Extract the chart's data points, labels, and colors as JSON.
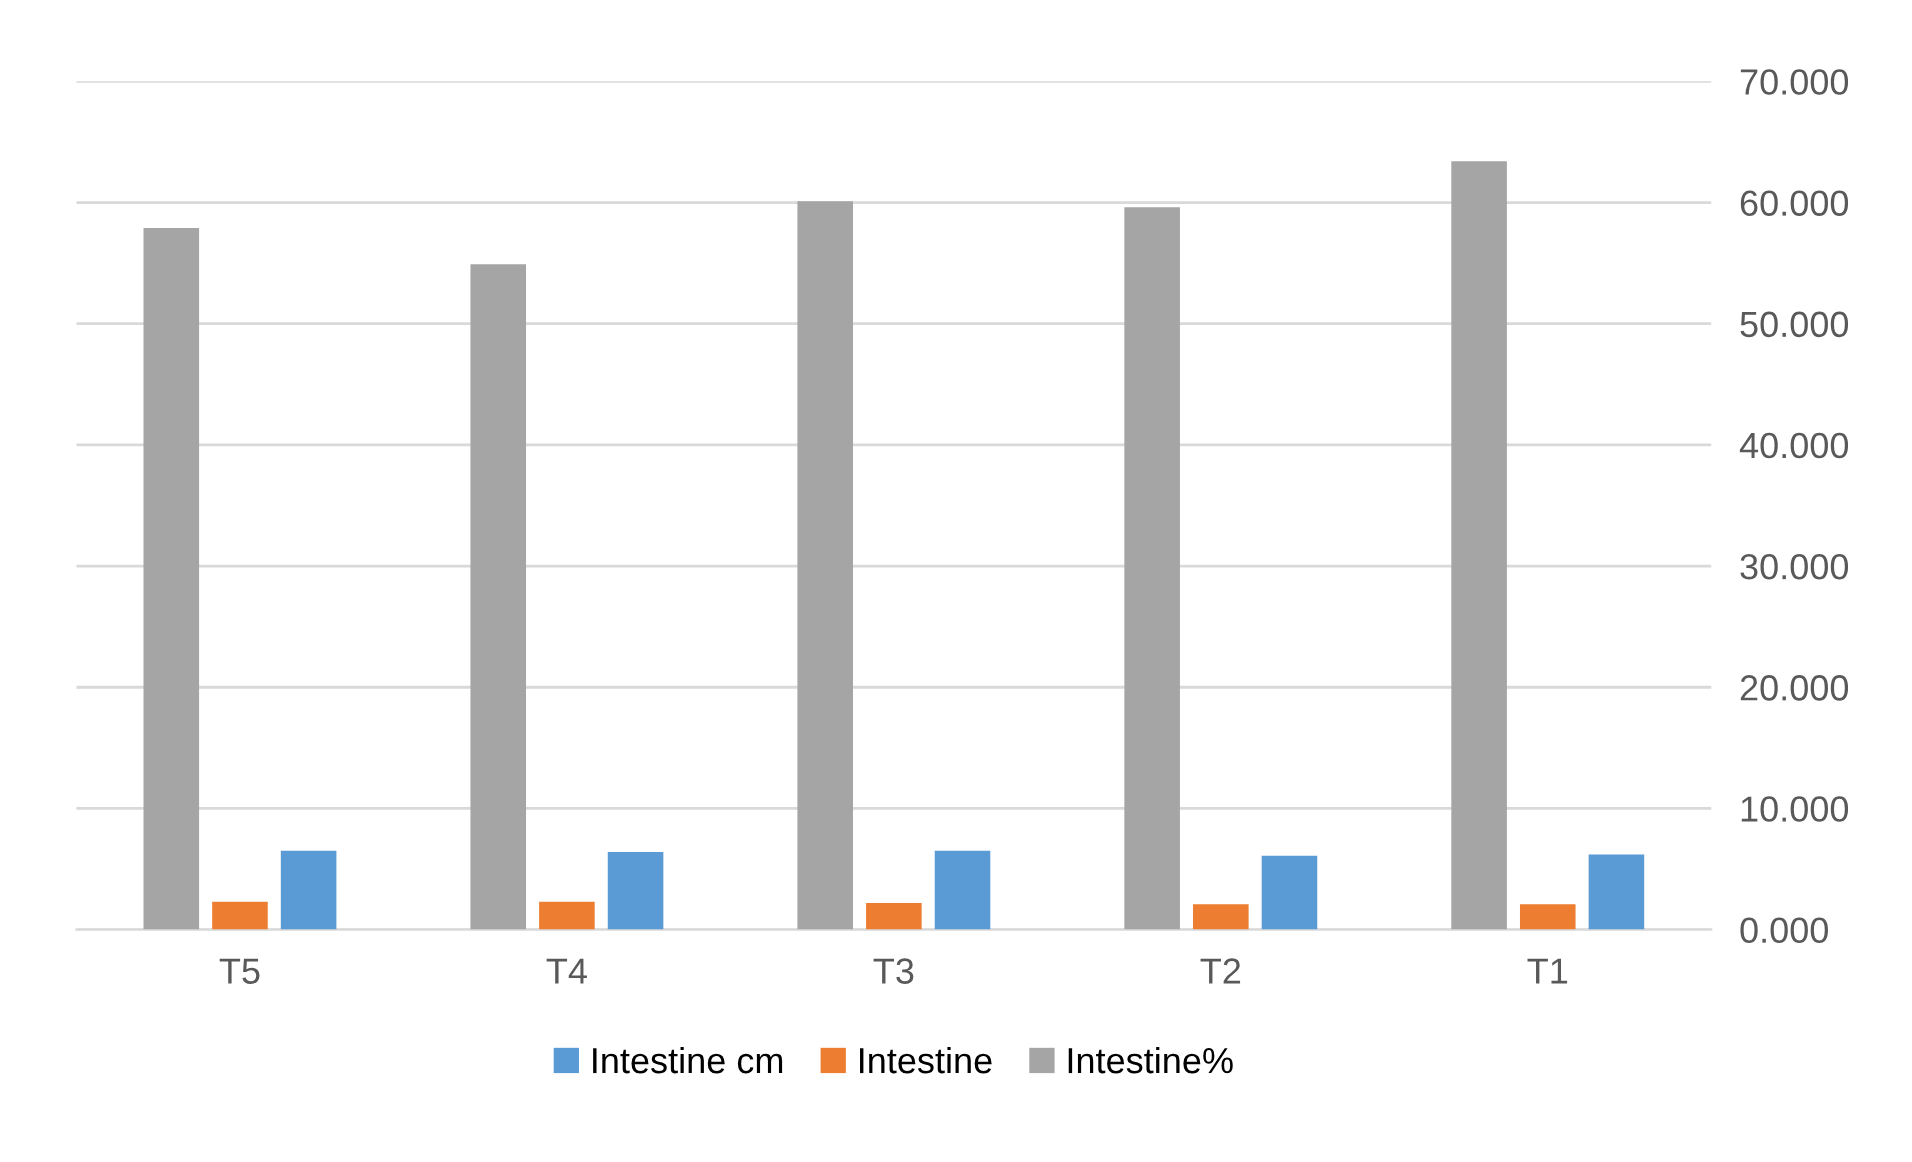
{
  "chart_data": {
    "type": "bar",
    "categories": [
      "T5",
      "T4",
      "T3",
      "T2",
      "T1"
    ],
    "series": [
      {
        "name": "Intestine cm",
        "color": "#5b9bd5",
        "values": [
          6.5,
          6.4,
          6.5,
          6.1,
          6.2
        ]
      },
      {
        "name": "Intestine",
        "color": "#ed7d31",
        "values": [
          2.3,
          2.3,
          2.2,
          2.1,
          2.1
        ]
      },
      {
        "name": "Intestine%",
        "color": "#a5a5a5",
        "values": [
          57.9,
          54.9,
          60.1,
          59.6,
          63.4
        ]
      }
    ],
    "ylim": [
      0,
      70
    ],
    "yticks": [
      {
        "value": 0,
        "label": "0.000"
      },
      {
        "value": 10,
        "label": "10.000"
      },
      {
        "value": 20,
        "label": "20.000"
      },
      {
        "value": 30,
        "label": "30.000"
      },
      {
        "value": 40,
        "label": "40.000"
      },
      {
        "value": 50,
        "label": "50.000"
      },
      {
        "value": 60,
        "label": "60.000"
      },
      {
        "value": 70,
        "label": "70.000"
      }
    ],
    "grid": "y",
    "legend": "bottom"
  }
}
